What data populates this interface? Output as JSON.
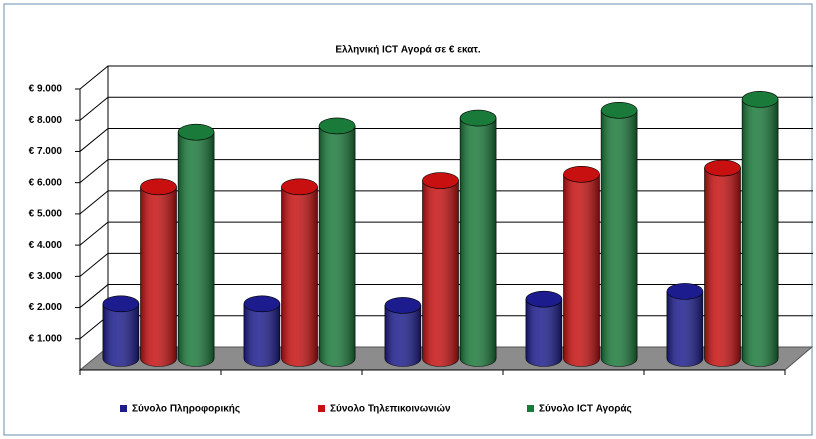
{
  "chart_data": {
    "type": "bar3d",
    "title": "Ελληνική ICT Αγορά σε € εκατ.",
    "categories": [
      null,
      null,
      null,
      null,
      null
    ],
    "series": [
      {
        "name": "Σύνολο Πληροφορικής",
        "color": "#1c1c8f",
        "values": [
          1750,
          1750,
          1700,
          1900,
          2150
        ]
      },
      {
        "name": "Σύνολο Τηλεπικοινωνιών",
        "color": "#c81010",
        "values": [
          5500,
          5500,
          5700,
          5900,
          6100
        ]
      },
      {
        "name": "Σύνολο ICT Αγοράς",
        "color": "#1a7a3a",
        "values": [
          7250,
          7450,
          7700,
          7950,
          8300
        ]
      }
    ],
    "ylim": [
      0,
      9000
    ],
    "yticks": [
      {
        "value": 1000,
        "label": "€ 1.000"
      },
      {
        "value": 2000,
        "label": "€ 2.000"
      },
      {
        "value": 3000,
        "label": "€ 3.000"
      },
      {
        "value": 4000,
        "label": "€ 4.000"
      },
      {
        "value": 5000,
        "label": "€ 5.000"
      },
      {
        "value": 6000,
        "label": "€ 6.000"
      },
      {
        "value": 7000,
        "label": "€ 7.000"
      },
      {
        "value": 8000,
        "label": "€ 8.000"
      },
      {
        "value": 9000,
        "label": "€ 9.000"
      }
    ],
    "grid": true,
    "legend": "bottom"
  }
}
